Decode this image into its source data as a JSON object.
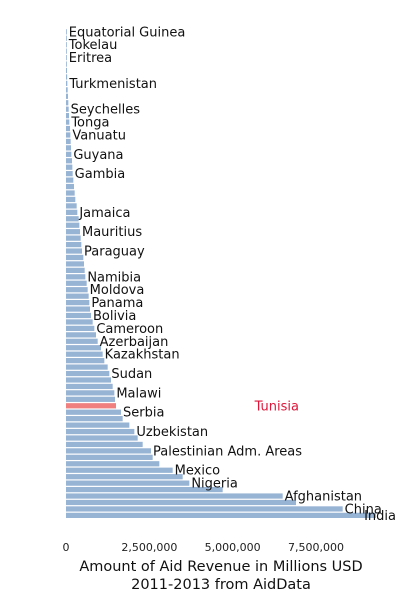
{
  "chart_data": {
    "type": "bar",
    "orientation": "horizontal",
    "sort": "ascending",
    "title": "",
    "xlabel": "Amount of Aid Revenue in Millions USD",
    "xlabel2": "2011-2013 from AidData",
    "ylabel": "",
    "xlim": [
      0,
      9300000
    ],
    "xticks": [
      0,
      2500000,
      5000000,
      7500000
    ],
    "xtick_labels": [
      "0",
      "2,500,000",
      "5,000,000",
      "7,500,000"
    ],
    "grid": false,
    "legend": "none",
    "colors": {
      "bar": "#98b4d4",
      "highlight_bar": "#f08080",
      "highlight_label": "#e0153a"
    },
    "highlight": "Tunisia",
    "bars": [
      {
        "label": "India",
        "value": 9300000
      },
      {
        "label": "China",
        "value": 8300000
      },
      {
        "label": "",
        "value": 6900000
      },
      {
        "label": "Afghanistan",
        "value": 6500000
      },
      {
        "label": "",
        "value": 4700000
      },
      {
        "label": "Nigeria",
        "value": 3700000
      },
      {
        "label": "",
        "value": 3500000
      },
      {
        "label": "Mexico",
        "value": 3200000
      },
      {
        "label": "",
        "value": 2800000
      },
      {
        "label": "",
        "value": 2600000
      },
      {
        "label": "Palestinian Adm. Areas",
        "value": 2550000
      },
      {
        "label": "",
        "value": 2300000
      },
      {
        "label": "",
        "value": 2150000
      },
      {
        "label": "Uzbekistan",
        "value": 2050000
      },
      {
        "label": "",
        "value": 1900000
      },
      {
        "label": "",
        "value": 1700000
      },
      {
        "label": "Serbia",
        "value": 1650000
      },
      {
        "label": "Tunisia",
        "value": 1500000
      },
      {
        "label": "",
        "value": 1470000
      },
      {
        "label": "Malawi",
        "value": 1450000
      },
      {
        "label": "",
        "value": 1400000
      },
      {
        "label": "",
        "value": 1350000
      },
      {
        "label": "Sudan",
        "value": 1300000
      },
      {
        "label": "",
        "value": 1250000
      },
      {
        "label": "",
        "value": 1150000
      },
      {
        "label": "Kazakhstan",
        "value": 1100000
      },
      {
        "label": "",
        "value": 1050000
      },
      {
        "label": "Azerbaijan",
        "value": 950000
      },
      {
        "label": "",
        "value": 900000
      },
      {
        "label": "Cameroon",
        "value": 850000
      },
      {
        "label": "",
        "value": 800000
      },
      {
        "label": "Bolivia",
        "value": 750000
      },
      {
        "label": "",
        "value": 720000
      },
      {
        "label": "Panama",
        "value": 700000
      },
      {
        "label": "",
        "value": 680000
      },
      {
        "label": "Moldova",
        "value": 650000
      },
      {
        "label": "",
        "value": 620000
      },
      {
        "label": "Namibia",
        "value": 580000
      },
      {
        "label": "",
        "value": 560000
      },
      {
        "label": "",
        "value": 540000
      },
      {
        "label": "",
        "value": 520000
      },
      {
        "label": "Paraguay",
        "value": 480000
      },
      {
        "label": "",
        "value": 460000
      },
      {
        "label": "",
        "value": 440000
      },
      {
        "label": "Mauritius",
        "value": 420000
      },
      {
        "label": "",
        "value": 400000
      },
      {
        "label": "",
        "value": 380000
      },
      {
        "label": "Jamaica",
        "value": 340000
      },
      {
        "label": "",
        "value": 320000
      },
      {
        "label": "",
        "value": 280000
      },
      {
        "label": "",
        "value": 260000
      },
      {
        "label": "",
        "value": 240000
      },
      {
        "label": "",
        "value": 220000
      },
      {
        "label": "Gambia",
        "value": 200000
      },
      {
        "label": "",
        "value": 190000
      },
      {
        "label": "",
        "value": 180000
      },
      {
        "label": "Guyana",
        "value": 160000
      },
      {
        "label": "",
        "value": 150000
      },
      {
        "label": "",
        "value": 140000
      },
      {
        "label": "Vanuatu",
        "value": 130000
      },
      {
        "label": "",
        "value": 120000
      },
      {
        "label": "Tonga",
        "value": 100000
      },
      {
        "label": "",
        "value": 90000
      },
      {
        "label": "Seychelles",
        "value": 80000
      },
      {
        "label": "",
        "value": 70000
      },
      {
        "label": "",
        "value": 60000
      },
      {
        "label": "",
        "value": 50000
      },
      {
        "label": "Turkmenistan",
        "value": 40000
      },
      {
        "label": "",
        "value": 35000
      },
      {
        "label": "",
        "value": 30000
      },
      {
        "label": "",
        "value": 25000
      },
      {
        "label": "Eritrea",
        "value": 20000
      },
      {
        "label": "",
        "value": 15000
      },
      {
        "label": "Tokelau",
        "value": 10000
      },
      {
        "label": "",
        "value": 7000
      },
      {
        "label": "Equatorial Guinea",
        "value": 5000
      }
    ]
  }
}
